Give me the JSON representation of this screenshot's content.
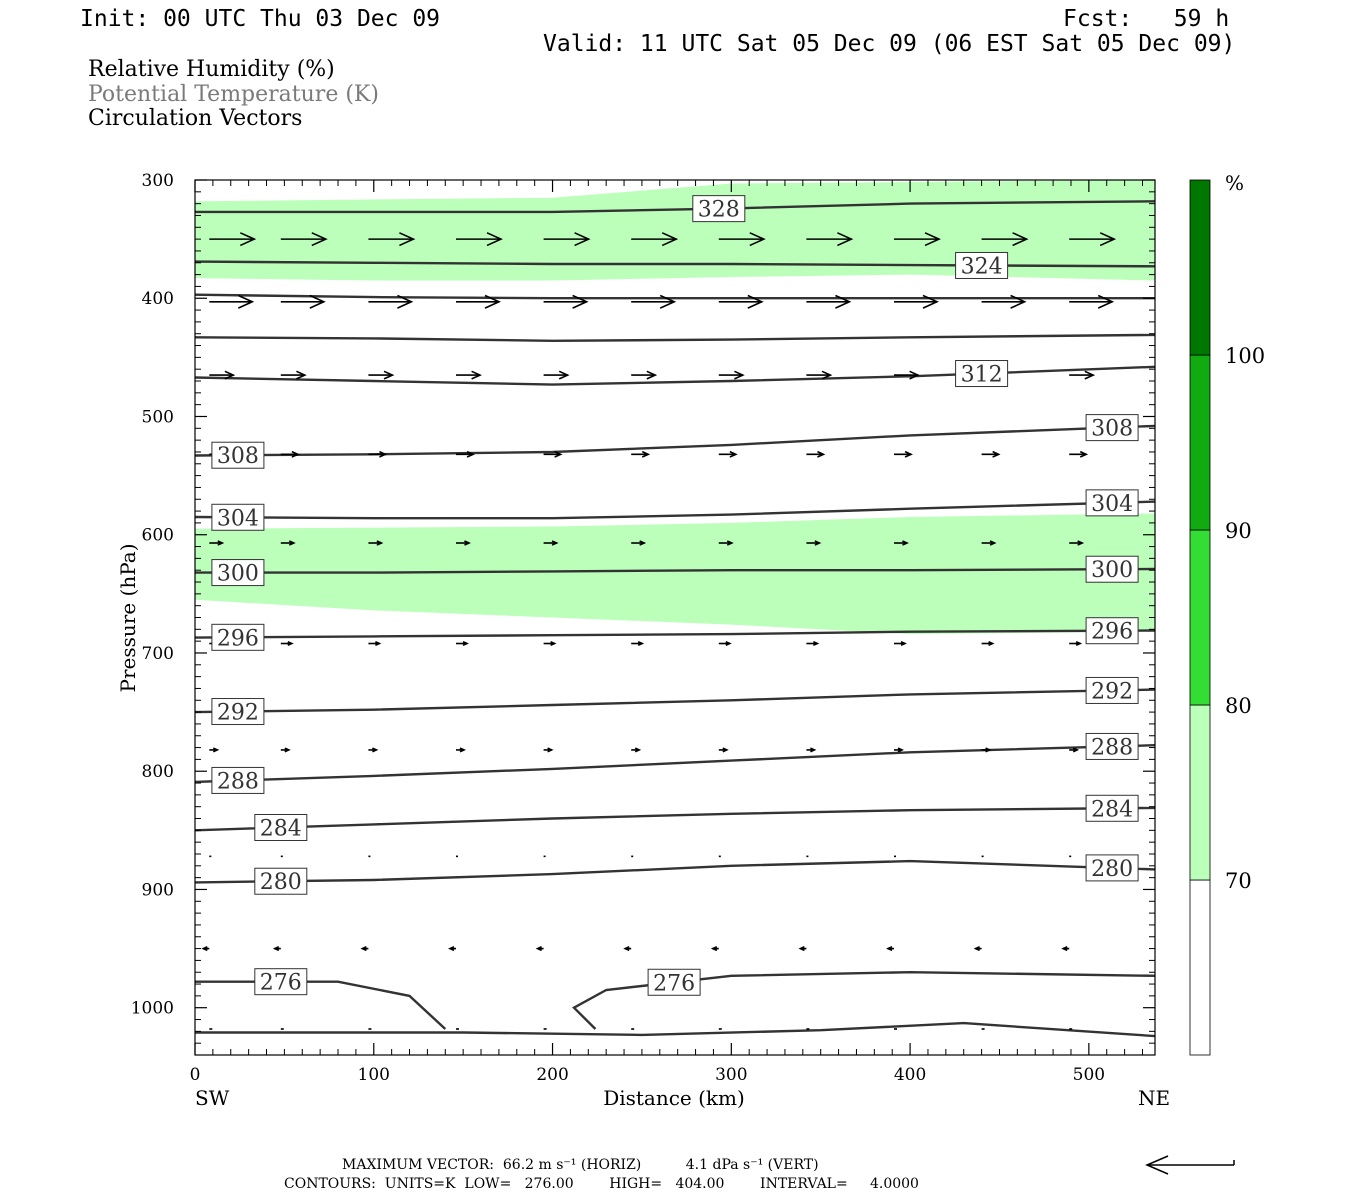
{
  "header": {
    "init": "Init: 00 UTC Thu 03 Dec 09",
    "fcst": "Fcst:   59 h",
    "valid": "Valid: 11 UTC Sat 05 Dec 09 (06 EST Sat 05 Dec 09)"
  },
  "legend_titles": {
    "rh": "Relative Humidity (%)",
    "theta": "Potential Temperature (K)",
    "vectors": "Circulation Vectors"
  },
  "colorbar": {
    "unit": "%",
    "levels": [
      70,
      80,
      90,
      100
    ],
    "colors": [
      "#ffffff",
      "#bbffbb",
      "#33dd33",
      "#11aa11",
      "#007700"
    ]
  },
  "chart_data": {
    "type": "cross-section",
    "xlabel": "Distance (km)",
    "ylabel": "Pressure (hPa)",
    "x_ticks": [
      0,
      100,
      200,
      300,
      400,
      500
    ],
    "y_ticks": [
      300,
      400,
      500,
      600,
      700,
      800,
      900,
      1000
    ],
    "xlim": [
      0,
      537
    ],
    "ylim": [
      1040,
      300
    ],
    "left_end": "SW",
    "right_end": "NE",
    "theta_contours": [
      {
        "value": 328,
        "label": "328",
        "points": [
          [
            0,
            327
          ],
          [
            100,
            327
          ],
          [
            200,
            327
          ],
          [
            300,
            324
          ],
          [
            400,
            320
          ],
          [
            537,
            318
          ]
        ]
      },
      {
        "value": 324,
        "label": "324",
        "points": [
          [
            0,
            369
          ],
          [
            100,
            370
          ],
          [
            200,
            371
          ],
          [
            300,
            371
          ],
          [
            400,
            372
          ],
          [
            537,
            373
          ]
        ]
      },
      {
        "value": 320,
        "label": "",
        "points": [
          [
            0,
            397
          ],
          [
            100,
            399
          ],
          [
            200,
            400
          ],
          [
            300,
            400
          ],
          [
            400,
            400
          ],
          [
            537,
            400
          ]
        ]
      },
      {
        "value": 316,
        "label": "",
        "points": [
          [
            0,
            433
          ],
          [
            100,
            434
          ],
          [
            200,
            436
          ],
          [
            300,
            435
          ],
          [
            400,
            433
          ],
          [
            537,
            431
          ]
        ]
      },
      {
        "value": 312,
        "label": "312",
        "points": [
          [
            0,
            467
          ],
          [
            100,
            470
          ],
          [
            200,
            473
          ],
          [
            300,
            470
          ],
          [
            400,
            466
          ],
          [
            537,
            458
          ]
        ]
      },
      {
        "value": 308,
        "label": "308",
        "points": [
          [
            0,
            533
          ],
          [
            100,
            532
          ],
          [
            200,
            530
          ],
          [
            300,
            524
          ],
          [
            400,
            516
          ],
          [
            537,
            508
          ]
        ]
      },
      {
        "value": 304,
        "label": "304",
        "points": [
          [
            0,
            585
          ],
          [
            100,
            586
          ],
          [
            200,
            586
          ],
          [
            300,
            583
          ],
          [
            400,
            578
          ],
          [
            537,
            572
          ]
        ]
      },
      {
        "value": 300,
        "label": "300",
        "points": [
          [
            0,
            632
          ],
          [
            100,
            632
          ],
          [
            200,
            631
          ],
          [
            300,
            630
          ],
          [
            400,
            630
          ],
          [
            537,
            629
          ]
        ]
      },
      {
        "value": 296,
        "label": "296",
        "points": [
          [
            0,
            687
          ],
          [
            100,
            686
          ],
          [
            200,
            685
          ],
          [
            300,
            684
          ],
          [
            400,
            682
          ],
          [
            537,
            681
          ]
        ]
      },
      {
        "value": 292,
        "label": "292",
        "points": [
          [
            0,
            750
          ],
          [
            100,
            748
          ],
          [
            200,
            744
          ],
          [
            300,
            740
          ],
          [
            400,
            735
          ],
          [
            537,
            731
          ]
        ]
      },
      {
        "value": 288,
        "label": "288",
        "points": [
          [
            0,
            809
          ],
          [
            100,
            804
          ],
          [
            200,
            798
          ],
          [
            300,
            791
          ],
          [
            400,
            784
          ],
          [
            537,
            778
          ]
        ]
      },
      {
        "value": 284,
        "label": "284",
        "points": [
          [
            0,
            850
          ],
          [
            100,
            845
          ],
          [
            200,
            840
          ],
          [
            300,
            836
          ],
          [
            400,
            833
          ],
          [
            537,
            831
          ]
        ]
      },
      {
        "value": 280,
        "label": "280",
        "points": [
          [
            0,
            894
          ],
          [
            100,
            892
          ],
          [
            200,
            887
          ],
          [
            300,
            880
          ],
          [
            400,
            876
          ],
          [
            537,
            883
          ]
        ]
      },
      {
        "value": 276,
        "label": "276",
        "points": [
          [
            0,
            978
          ],
          [
            80,
            978
          ],
          [
            120,
            990
          ],
          [
            140,
            1018
          ]
        ]
      },
      {
        "value": 276,
        "label": "276",
        "points": [
          [
            224,
            1018
          ],
          [
            212,
            1000
          ],
          [
            230,
            985
          ],
          [
            300,
            973
          ],
          [
            400,
            970
          ],
          [
            537,
            973
          ]
        ]
      },
      {
        "value": 272,
        "label": "",
        "points": [
          [
            0,
            1021
          ],
          [
            150,
            1021
          ],
          [
            250,
            1023
          ],
          [
            350,
            1019
          ],
          [
            430,
            1013
          ],
          [
            537,
            1024
          ]
        ]
      }
    ],
    "rh_bands": [
      {
        "range": "70-80",
        "top": [
          [
            0,
            318
          ],
          [
            200,
            315
          ],
          [
            300,
            303
          ],
          [
            537,
            300
          ]
        ],
        "bottom": [
          [
            0,
            383
          ],
          [
            100,
            385
          ],
          [
            200,
            385
          ],
          [
            300,
            382
          ],
          [
            400,
            380
          ],
          [
            537,
            385
          ]
        ]
      },
      {
        "range": "70-80",
        "top": [
          [
            0,
            595
          ],
          [
            200,
            593
          ],
          [
            300,
            590
          ],
          [
            400,
            585
          ],
          [
            537,
            582
          ]
        ],
        "bottom": [
          [
            0,
            655
          ],
          [
            100,
            664
          ],
          [
            200,
            670
          ],
          [
            300,
            676
          ],
          [
            400,
            684
          ],
          [
            537,
            682
          ]
        ]
      }
    ],
    "vector_rows": [
      {
        "pressure": 350,
        "dx": 45,
        "dy": 0
      },
      {
        "pressure": 403,
        "dx": 43,
        "dy": 0
      },
      {
        "pressure": 465,
        "dx": 24,
        "dy": 0
      },
      {
        "pressure": 532,
        "dx": 17,
        "dy": 0
      },
      {
        "pressure": 607,
        "dx": 13,
        "dy": 0
      },
      {
        "pressure": 692,
        "dx": 11,
        "dy": 0
      },
      {
        "pressure": 782,
        "dx": 8,
        "dy": 0
      },
      {
        "pressure": 872,
        "dx": 2,
        "dy": 0
      },
      {
        "pressure": 950,
        "dx": -6,
        "dy": 0
      },
      {
        "pressure": 1018,
        "dx": 3,
        "dy": 0
      }
    ],
    "vector_x": [
      8,
      48,
      97,
      146,
      195,
      244,
      293,
      342,
      391,
      440,
      489
    ]
  },
  "footer": {
    "line1": "MAXIMUM VECTOR:  66.2 m s⁻¹ (HORIZ)          4.1 dPa s⁻¹ (VERT)",
    "line2": "CONTOURS:  UNITS=K  LOW=   276.00        HIGH=   404.00        INTERVAL=     4.0000"
  }
}
